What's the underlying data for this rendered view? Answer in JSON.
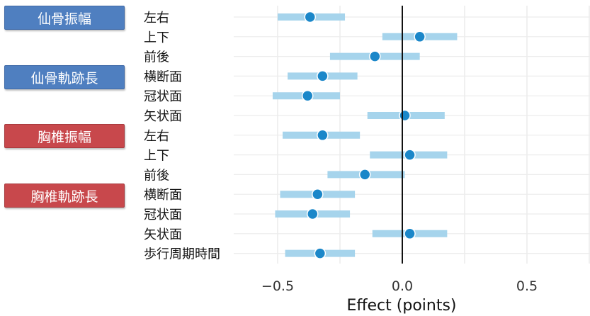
{
  "groups": [
    {
      "label": "仙骨振幅",
      "color": "#4f7fc0"
    },
    {
      "label": "仙骨軌跡長",
      "color": "#4f7fc0"
    },
    {
      "label": "胸椎振幅",
      "color": "#c8484c"
    },
    {
      "label": "胸椎軌跡長",
      "color": "#c8484c"
    }
  ],
  "chart_data": {
    "type": "scatter",
    "xlabel": "Effect (points)",
    "xlim": [
      -0.65,
      0.72
    ],
    "xticks": [
      -0.5,
      0.0,
      0.5
    ],
    "xtick_labels": [
      "−0.5",
      "0.0",
      "0.5"
    ],
    "grid": true,
    "zero_line": true,
    "point_color": "#1b87c9",
    "interval_color": "#a6d4ec",
    "rows": [
      {
        "label": "左右",
        "estimate": -0.37,
        "low": -0.5,
        "high": -0.23
      },
      {
        "label": "上下",
        "estimate": 0.07,
        "low": -0.08,
        "high": 0.22
      },
      {
        "label": "前後",
        "estimate": -0.11,
        "low": -0.29,
        "high": 0.07
      },
      {
        "label": "横断面",
        "estimate": -0.32,
        "low": -0.46,
        "high": -0.18
      },
      {
        "label": "冠状面",
        "estimate": -0.38,
        "low": -0.52,
        "high": -0.25
      },
      {
        "label": "矢状面",
        "estimate": 0.01,
        "low": -0.14,
        "high": 0.17
      },
      {
        "label": "左右",
        "estimate": -0.32,
        "low": -0.48,
        "high": -0.17
      },
      {
        "label": "上下",
        "estimate": 0.03,
        "low": -0.13,
        "high": 0.18
      },
      {
        "label": "前後",
        "estimate": -0.15,
        "low": -0.3,
        "high": 0.01
      },
      {
        "label": "横断面",
        "estimate": -0.34,
        "low": -0.49,
        "high": -0.19
      },
      {
        "label": "冠状面",
        "estimate": -0.36,
        "low": -0.51,
        "high": -0.21
      },
      {
        "label": "矢状面",
        "estimate": 0.03,
        "low": -0.12,
        "high": 0.18
      },
      {
        "label": "歩行周期時間",
        "estimate": -0.33,
        "low": -0.47,
        "high": -0.19
      }
    ]
  }
}
